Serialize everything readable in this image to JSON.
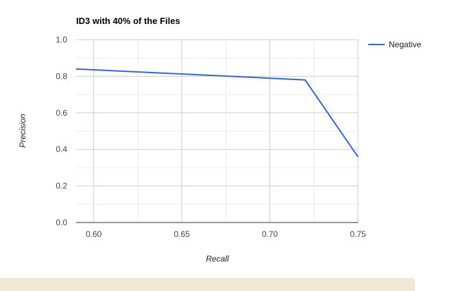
{
  "chart_data": {
    "type": "line",
    "title": "ID3 with 40% of the Files",
    "xlabel": "Recall",
    "ylabel": "Precision",
    "xlim": [
      0.59,
      0.75
    ],
    "ylim": [
      0.0,
      1.0
    ],
    "x_ticks": [
      "0.60",
      "0.65",
      "0.70",
      "0.75"
    ],
    "y_ticks": [
      "0.0",
      "0.2",
      "0.4",
      "0.6",
      "0.8",
      "1.0"
    ],
    "grid": true,
    "legend_position": "right",
    "series": [
      {
        "name": "Negative",
        "color": "#3366cc",
        "x": [
          0.59,
          0.72,
          0.75
        ],
        "y": [
          0.84,
          0.78,
          0.36
        ]
      }
    ]
  },
  "colors": {
    "grid_major": "#cccccc",
    "grid_minor": "#ebebeb",
    "axis": "#333333",
    "footer": "#f0e8d5"
  }
}
